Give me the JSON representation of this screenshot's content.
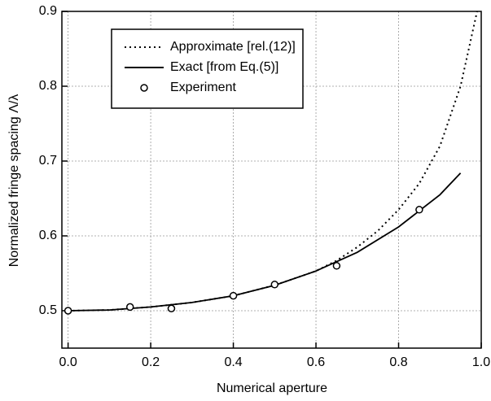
{
  "chart_data": {
    "type": "line",
    "x_label": "Numerical aperture",
    "y_label": "Normalized fringe spacing Λ/λ",
    "xlim": [
      -0.015,
      1.0
    ],
    "ylim": [
      0.45,
      0.9
    ],
    "xticks": [
      {
        "value": 0,
        "label": "0.0"
      },
      0.2,
      0.4,
      0.6,
      0.8,
      {
        "value": 1,
        "label": "1.0"
      }
    ],
    "yticks": [
      0.5,
      0.6,
      0.7,
      0.8,
      0.9
    ],
    "grid": true,
    "legend": "upper left",
    "series": [
      {
        "name": "Approximate [rel.(12)]",
        "color": "#000000",
        "style": "dotted",
        "x": [
          0,
          0.1,
          0.2,
          0.3,
          0.4,
          0.5,
          0.6,
          0.65,
          0.7,
          0.75,
          0.8,
          0.85,
          0.9,
          0.95,
          0.99
        ],
        "values": [
          0.5,
          0.501,
          0.505,
          0.511,
          0.52,
          0.534,
          0.553,
          0.567,
          0.585,
          0.607,
          0.635,
          0.67,
          0.72,
          0.8,
          0.9
        ]
      },
      {
        "name": "Exact [from Eq.(5)]",
        "color": "#000000",
        "style": "solid",
        "x": [
          0,
          0.1,
          0.2,
          0.3,
          0.4,
          0.5,
          0.6,
          0.7,
          0.8,
          0.9,
          0.95
        ],
        "values": [
          0.5,
          0.501,
          0.505,
          0.511,
          0.52,
          0.534,
          0.553,
          0.578,
          0.612,
          0.655,
          0.684
        ]
      },
      {
        "name": "Experiment",
        "color": "#000000",
        "style": "markers",
        "x": [
          0,
          0.15,
          0.25,
          0.4,
          0.5,
          0.65,
          0.85
        ],
        "values": [
          0.5,
          0.505,
          0.503,
          0.52,
          0.535,
          0.56,
          0.635
        ]
      }
    ]
  }
}
